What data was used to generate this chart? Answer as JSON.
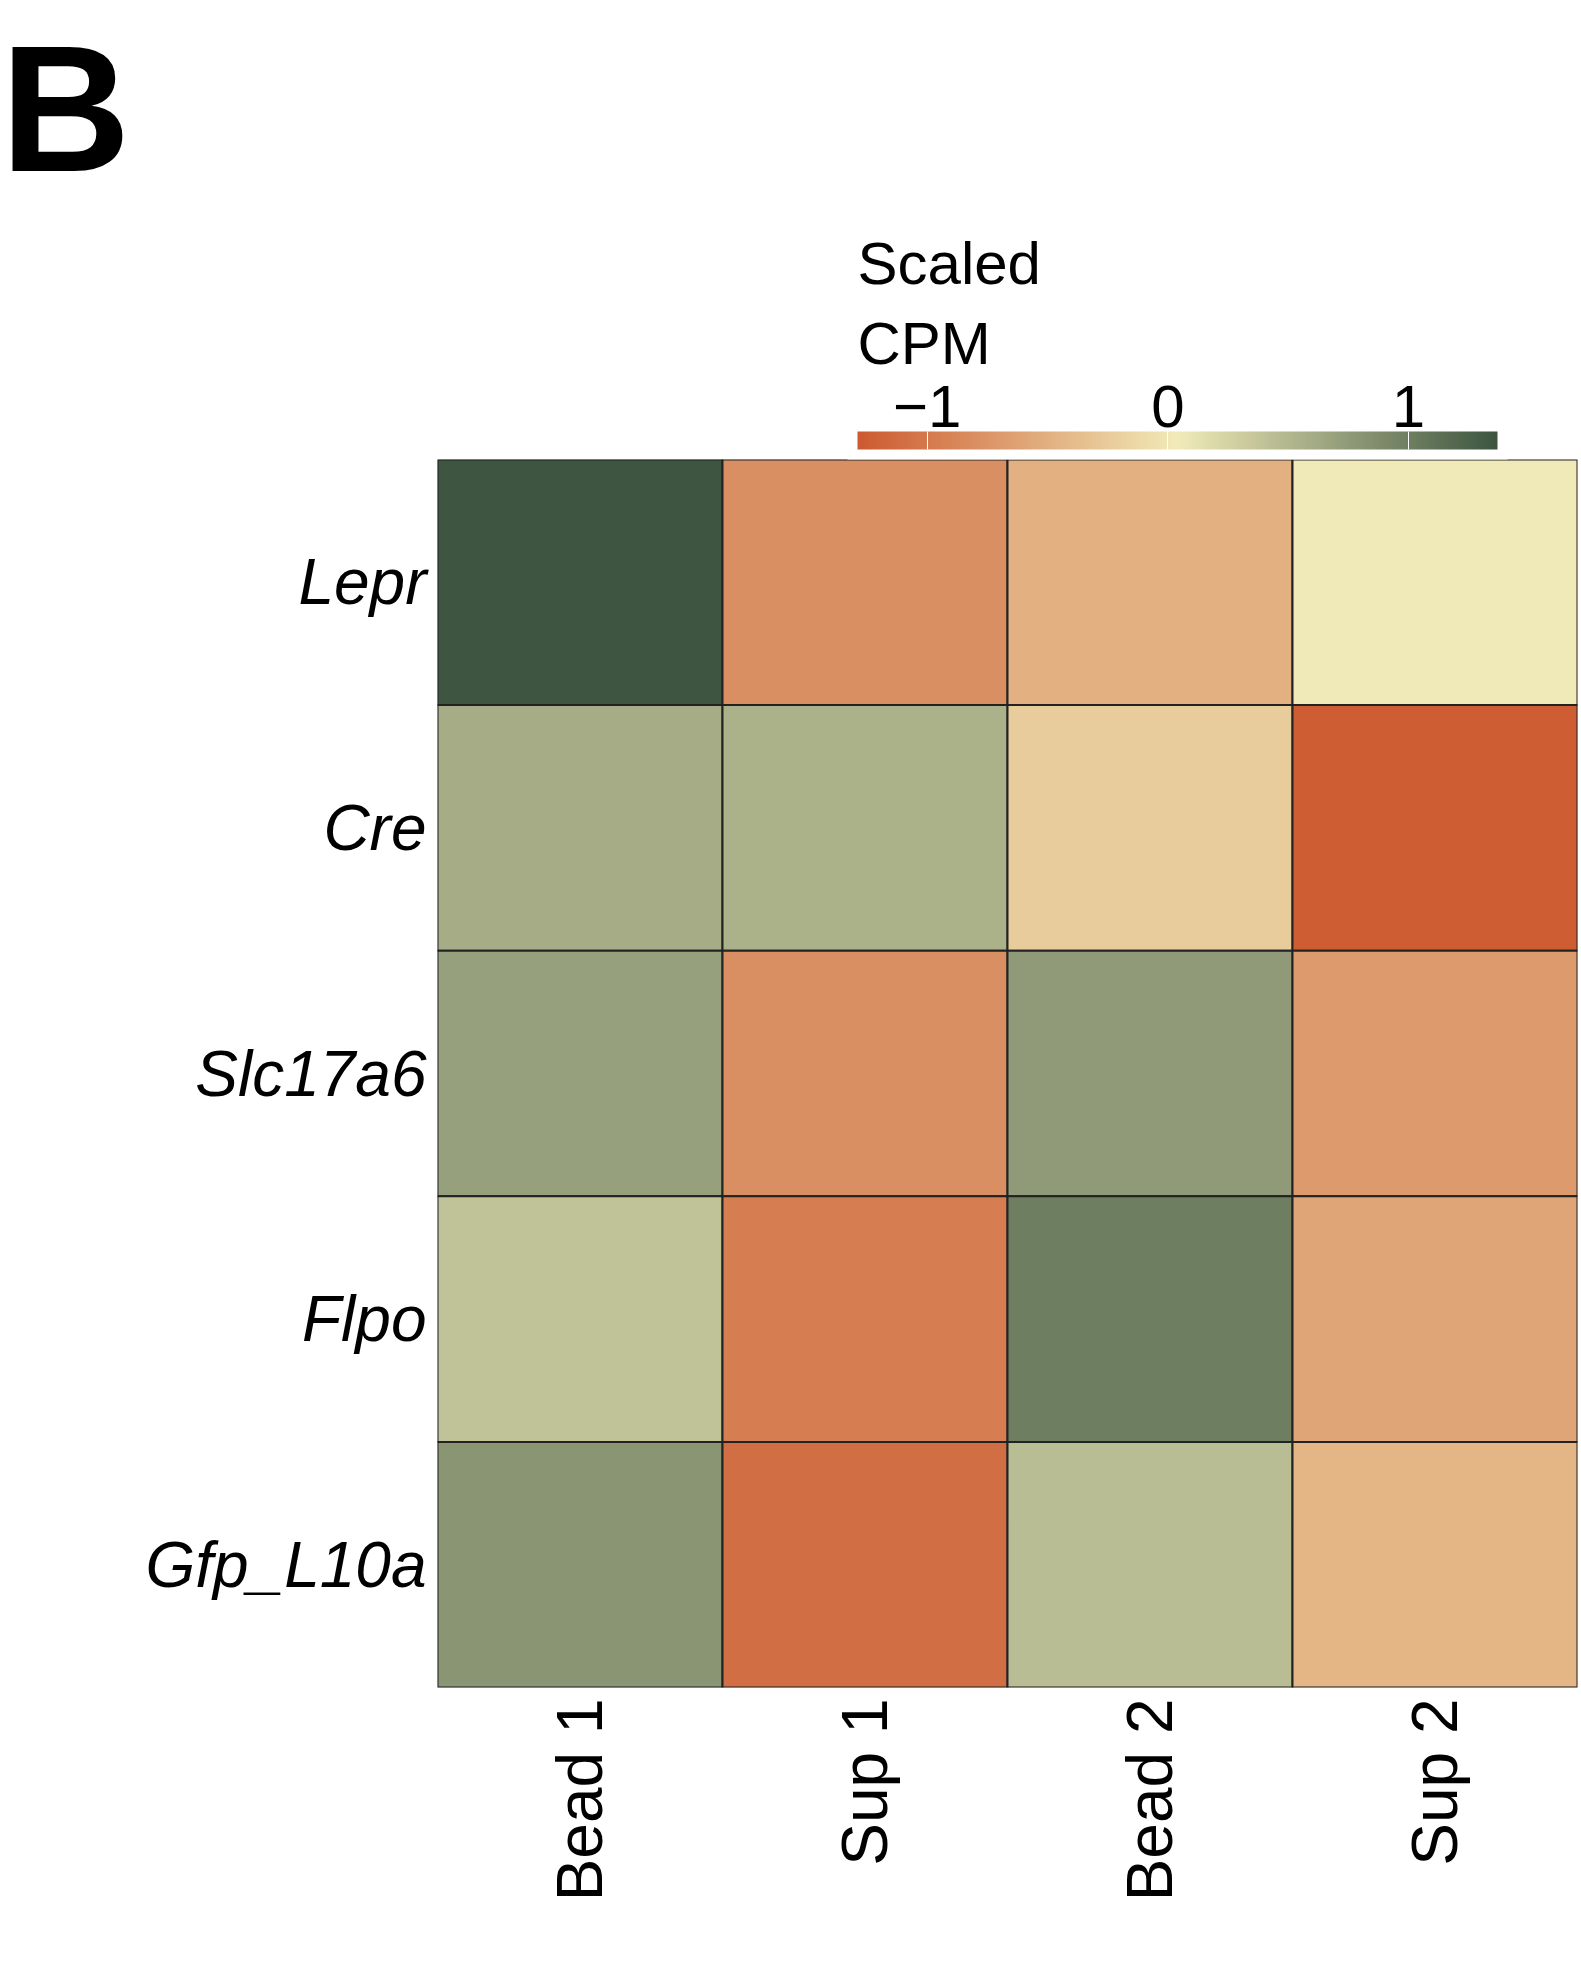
{
  "chart_data": {
    "type": "heatmap",
    "annotations": [
      "B"
    ],
    "clabel": "Scaled\nCPM",
    "categories": [
      "Bead 1",
      "Sup 1",
      "Bead 2",
      "Sup 2"
    ],
    "y_categories": [
      "Lepr",
      "Cre",
      "Slc17a6",
      "Flpo",
      "Gfp_L10a"
    ],
    "cells": [
      [
        1.35,
        -0.8,
        -0.5,
        0.05
      ],
      [
        0.6,
        0.55,
        -0.25,
        -1.25
      ],
      [
        0.7,
        -0.8,
        0.75,
        -0.7
      ],
      [
        0.4,
        -0.95,
        1.0,
        -0.6
      ],
      [
        0.8,
        -1.1,
        0.45,
        -0.45
      ]
    ],
    "clim": [
      -1.29,
      1.37
    ],
    "cticks": [
      -1,
      0,
      1
    ],
    "colors": [
      "#cd5a30",
      "#f1ebb8",
      "#3d5540"
    ]
  }
}
